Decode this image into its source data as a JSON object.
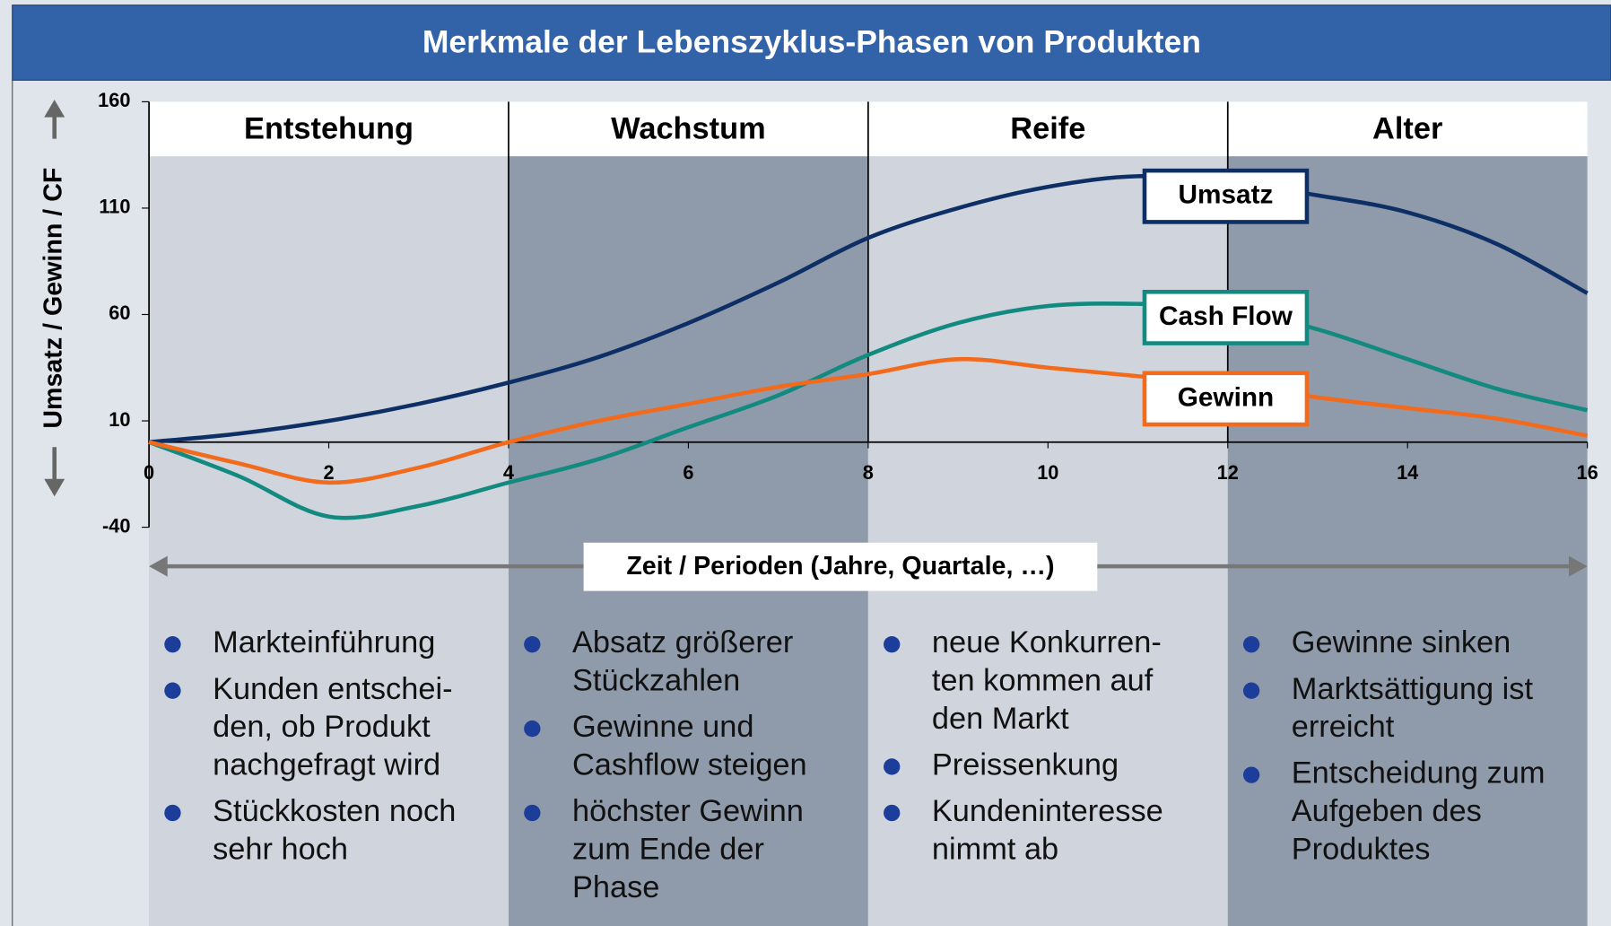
{
  "chart_data": {
    "type": "line",
    "title": "Merkmale der Lebenszyklus-Phasen von Produkten",
    "y_label": "Umsatz / Gewinn / CF",
    "x_label": "Zeit / Perioden (Jahre, Quartale, …)",
    "x": [
      0,
      1,
      2,
      3,
      4,
      5,
      6,
      7,
      8,
      9,
      10,
      11,
      12,
      13,
      14,
      15,
      16
    ],
    "series": [
      {
        "name": "Umsatz",
        "color": "#0d2f66",
        "values": [
          0,
          4,
          10,
          18,
          28,
          40,
          56,
          75,
          96,
          110,
          120,
          125,
          122,
          116,
          108,
          93,
          70
        ]
      },
      {
        "name": "Cash Flow",
        "color": "#138a80",
        "values": [
          0,
          -16,
          -35,
          -30,
          -19,
          -8,
          7,
          22,
          41,
          56,
          64,
          65,
          63,
          53,
          39,
          25,
          15
        ]
      },
      {
        "name": "Gewinn",
        "color": "#f26b1d",
        "values": [
          0,
          -10,
          -19,
          -12,
          0,
          10,
          18,
          26,
          32,
          39,
          35,
          31,
          27,
          21,
          16,
          11,
          3
        ]
      }
    ],
    "xlim": [
      0,
      16
    ],
    "xticks": [
      0,
      2,
      4,
      6,
      8,
      10,
      12,
      14,
      16
    ],
    "ylim": [
      -40,
      160
    ],
    "yticks": [
      160,
      110,
      60,
      10,
      -40
    ],
    "phases": [
      {
        "name": "Entstehung",
        "start": 0,
        "end": 4,
        "color": "#d0d5dd",
        "bullets": [
          [
            "Markteinführung"
          ],
          [
            "Kunden entschei-",
            "den, ob Produkt",
            "nachgefragt wird"
          ],
          [
            "Stückkosten noch",
            "sehr hoch"
          ]
        ]
      },
      {
        "name": "Wachstum",
        "start": 4,
        "end": 8,
        "color": "#8f9baa",
        "bullets": [
          [
            "Absatz größerer",
            "Stückzahlen"
          ],
          [
            "Gewinne und",
            "Cashflow steigen"
          ],
          [
            "höchster Gewinn",
            "zum Ende der",
            "Phase"
          ]
        ]
      },
      {
        "name": "Reife",
        "start": 8,
        "end": 12,
        "color": "#d0d5dd",
        "bullets": [
          [
            "neue Konkurren-",
            "ten kommen auf",
            "den Markt"
          ],
          [
            "Preissenkung"
          ],
          [
            "Kundeninteresse",
            "nimmt ab"
          ]
        ]
      },
      {
        "name": "Alter",
        "start": 12,
        "end": 16,
        "color": "#8f9baa",
        "bullets": [
          [
            "Gewinne sinken"
          ],
          [
            "Marktsättigung ist",
            "erreicht"
          ],
          [
            "Entscheidung zum",
            "Aufgeben des",
            "Produktes"
          ]
        ]
      }
    ]
  }
}
